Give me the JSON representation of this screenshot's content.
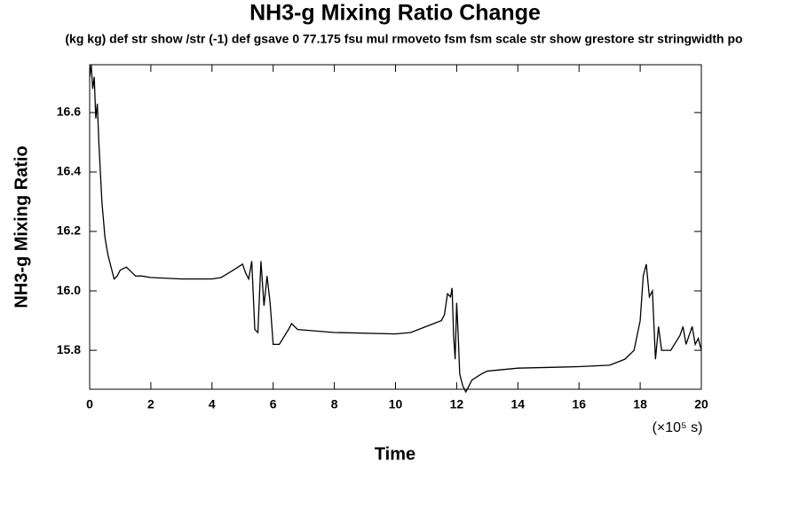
{
  "chart_data": {
    "type": "line",
    "title": "NH3-g Mixing Ratio Change",
    "subtitle": "(kg kg) def str show /str (-1) def gsave 0 77.175 fsu mul rmoveto fsm fsm scale str show grestore str stringwidth po",
    "xlabel": "Time",
    "x_unit": "(×10⁵ s)",
    "ylabel": "NH3-g Mixing Ratio",
    "xlim": [
      0,
      20
    ],
    "xticks": [
      0,
      2,
      4,
      6,
      8,
      10,
      12,
      14,
      16,
      18,
      20
    ],
    "ylim": [
      15.669,
      16.761
    ],
    "yticks": [
      15.8,
      {
        "value": 16.0,
        "label": "16.0"
      },
      16.2,
      16.4,
      16.6
    ],
    "series": [
      {
        "color": "#000000",
        "x": [
          0,
          0.05,
          0.1,
          0.15,
          0.2,
          0.25,
          0.3,
          0.4,
          0.5,
          0.6,
          0.7,
          0.8,
          0.9,
          1.0,
          1.2,
          1.4,
          1.5,
          1.7,
          2,
          3,
          4,
          4.3,
          4.7,
          5.0,
          5.1,
          5.2,
          5.3,
          5.4,
          5.5,
          5.6,
          5.7,
          5.8,
          5.9,
          6.0,
          6.2,
          6.5,
          6.6,
          6.8,
          8,
          10,
          10.5,
          11,
          11.5,
          11.6,
          11.7,
          11.8,
          11.85,
          11.9,
          11.95,
          12.0,
          12.05,
          12.1,
          12.2,
          12.3,
          12.5,
          12.8,
          13.0,
          14,
          16,
          17,
          17.5,
          17.8,
          18.0,
          18.1,
          18.2,
          18.3,
          18.4,
          18.5,
          18.6,
          18.7,
          19.0,
          19.3,
          19.4,
          19.5,
          19.7,
          19.8,
          19.9,
          20
        ],
        "values": [
          16.72,
          16.76,
          16.68,
          16.72,
          16.58,
          16.63,
          16.5,
          16.3,
          16.18,
          16.12,
          16.08,
          16.04,
          16.05,
          16.07,
          16.08,
          16.06,
          16.05,
          16.05,
          16.045,
          16.04,
          16.04,
          16.045,
          16.07,
          16.09,
          16.06,
          16.04,
          16.1,
          15.87,
          15.86,
          16.1,
          15.95,
          16.05,
          15.96,
          15.82,
          15.82,
          15.87,
          15.89,
          15.87,
          15.86,
          15.855,
          15.86,
          15.88,
          15.9,
          15.92,
          15.99,
          15.98,
          16.01,
          15.85,
          15.77,
          15.96,
          15.85,
          15.72,
          15.68,
          15.66,
          15.7,
          15.72,
          15.73,
          15.74,
          15.745,
          15.75,
          15.77,
          15.8,
          15.9,
          16.05,
          16.09,
          15.98,
          16.0,
          15.77,
          15.88,
          15.8,
          15.8,
          15.85,
          15.88,
          15.82,
          15.88,
          15.82,
          15.84,
          15.8
        ]
      }
    ]
  }
}
